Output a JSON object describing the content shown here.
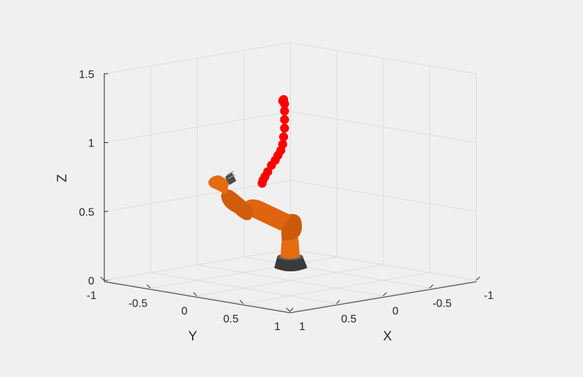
{
  "chart_data": {
    "type": "scatter",
    "projection": "3d",
    "title": "",
    "xlabel": "X",
    "ylabel": "Y",
    "zlabel": "Z",
    "xlim": [
      -1,
      1
    ],
    "ylim": [
      -1,
      1
    ],
    "zlim": [
      0,
      1.5
    ],
    "grid": true,
    "x_ticks": [
      "1",
      "0.5",
      "0",
      "-0.5",
      "-1"
    ],
    "y_ticks": [
      "-1",
      "-0.5",
      "0",
      "0.5",
      "1"
    ],
    "z_ticks": [
      "0",
      "0.5",
      "1",
      "1.5"
    ],
    "series": [
      {
        "marker_color": "#ff0000",
        "points": [
          {
            "x": 0.35,
            "y": 0.05,
            "z": 0.75
          },
          {
            "x": 0.33,
            "y": 0.04,
            "z": 0.77
          },
          {
            "x": 0.3,
            "y": 0.03,
            "z": 0.79
          },
          {
            "x": 0.26,
            "y": 0.02,
            "z": 0.82
          },
          {
            "x": 0.21,
            "y": 0.01,
            "z": 0.86
          },
          {
            "x": 0.16,
            "y": 0.0,
            "z": 0.89
          },
          {
            "x": 0.12,
            "y": -0.01,
            "z": 0.92
          },
          {
            "x": 0.08,
            "y": -0.02,
            "z": 0.95
          },
          {
            "x": 0.05,
            "y": -0.03,
            "z": 0.99
          },
          {
            "x": 0.03,
            "y": -0.04,
            "z": 1.04
          },
          {
            "x": 0.01,
            "y": -0.05,
            "z": 1.1
          },
          {
            "x": 0.0,
            "y": -0.06,
            "z": 1.16
          },
          {
            "x": -0.01,
            "y": -0.07,
            "z": 1.22
          },
          {
            "x": -0.02,
            "y": -0.08,
            "z": 1.27
          },
          {
            "x": -0.02,
            "y": -0.09,
            "z": 1.3
          },
          {
            "x": -0.02,
            "y": -0.1,
            "z": 1.29
          }
        ]
      }
    ],
    "objects": [
      {
        "name": "robot-arm",
        "body_color": "#e06010",
        "base_color": "#3c3c3c"
      }
    ]
  }
}
